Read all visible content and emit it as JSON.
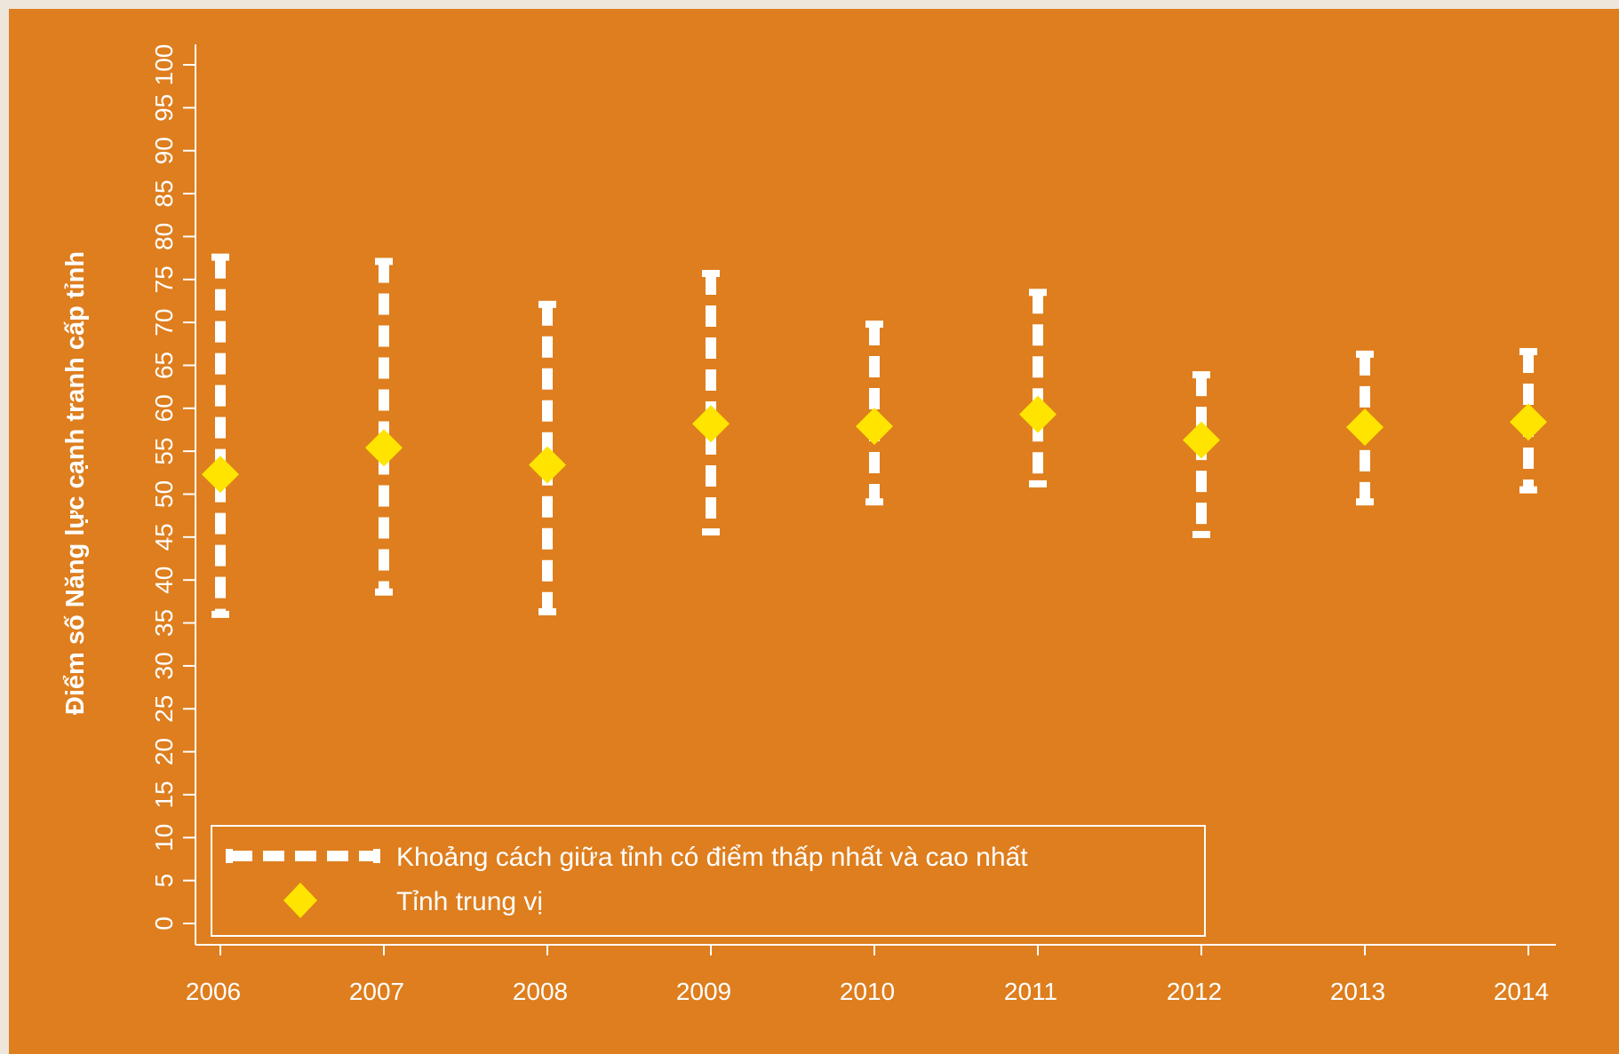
{
  "chart_data": {
    "type": "scatter",
    "title": "",
    "xlabel": "",
    "ylabel": "Điểm số Năng lực cạnh tranh cấp tỉnh",
    "ylim": [
      0,
      100
    ],
    "yticks": [
      0,
      5,
      10,
      15,
      20,
      25,
      30,
      35,
      40,
      45,
      50,
      55,
      60,
      65,
      70,
      75,
      80,
      85,
      90,
      95,
      100
    ],
    "categories": [
      "2006",
      "2007",
      "2008",
      "2009",
      "2010",
      "2011",
      "2012",
      "2013",
      "2014"
    ],
    "series": [
      {
        "name": "Khoảng cách giữa tỉnh có điểm thấp nhất và cao nhất",
        "style": "dashed-range",
        "color": "#ffffff",
        "low": [
          36.0,
          38.6,
          36.3,
          45.6,
          49.1,
          51.2,
          45.3,
          49.1,
          50.5
        ],
        "high": [
          77.6,
          77.1,
          72.1,
          75.7,
          69.8,
          73.5,
          63.9,
          66.3,
          66.6
        ]
      },
      {
        "name": "Tỉnh trung vị",
        "style": "diamond",
        "color": "#ffe400",
        "values": [
          52.3,
          55.4,
          53.4,
          58.2,
          57.9,
          59.3,
          56.3,
          57.8,
          58.4
        ]
      }
    ],
    "legend_position": "bottom-left",
    "grid": false
  }
}
